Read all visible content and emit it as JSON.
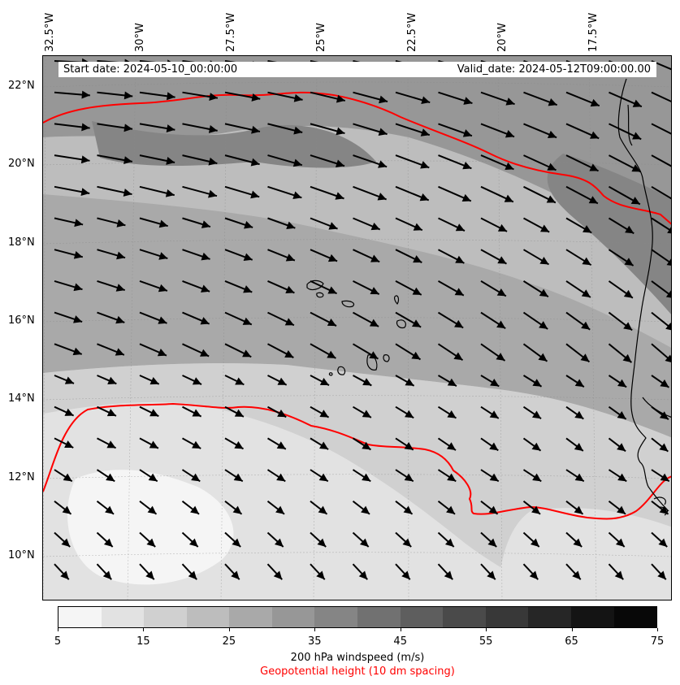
{
  "map": {
    "header": {
      "start_date": "Start date: 2024-05-10_00:00:00",
      "valid_date": "Valid_date: 2024-05-12T09:00:00.00"
    },
    "lon_labels": [
      "32.5°W",
      "30°W",
      "27.5°W",
      "25°W",
      "22.5°W",
      "20°W",
      "17.5°W"
    ],
    "lat_labels": [
      "22°N",
      "20°N",
      "18°N",
      "16°N",
      "14°N",
      "12°N",
      "10°N"
    ],
    "colors": {
      "geopotential_line": "#ff0000",
      "arrow": "#000000",
      "coastline": "#000000"
    }
  },
  "colorbar": {
    "tick_labels": [
      "5",
      "15",
      "25",
      "35",
      "45",
      "55",
      "65",
      "75"
    ],
    "colors": [
      "#f5f5f5",
      "#e2e2e2",
      "#d0d0d0",
      "#bdbdbd",
      "#a9a9a9",
      "#979797",
      "#858585",
      "#717171",
      "#5e5e5e",
      "#4a4a4a",
      "#383838",
      "#262626",
      "#141414",
      "#080808"
    ],
    "label": "200 hPa windspeed (m/s)",
    "sublabel": "Geopotential height (10 dm spacing)"
  }
}
